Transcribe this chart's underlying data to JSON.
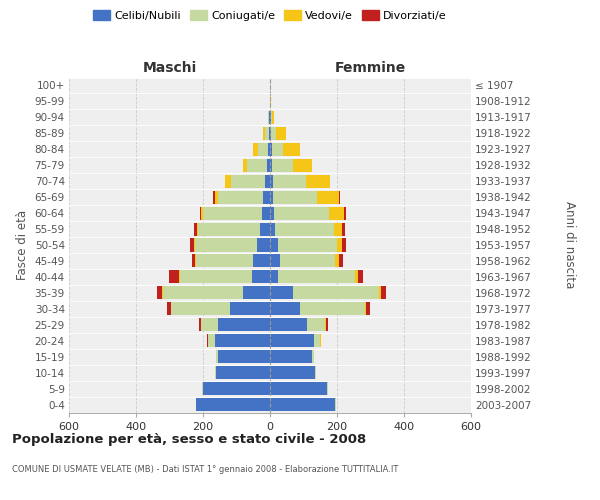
{
  "age_groups": [
    "100+",
    "95-99",
    "90-94",
    "85-89",
    "80-84",
    "75-79",
    "70-74",
    "65-69",
    "60-64",
    "55-59",
    "50-54",
    "45-49",
    "40-44",
    "35-39",
    "30-34",
    "25-29",
    "20-24",
    "15-19",
    "10-14",
    "5-9",
    "0-4"
  ],
  "birth_years": [
    "≤ 1907",
    "1908-1912",
    "1913-1917",
    "1918-1922",
    "1923-1927",
    "1928-1932",
    "1933-1937",
    "1938-1942",
    "1943-1947",
    "1948-1952",
    "1953-1957",
    "1958-1962",
    "1963-1967",
    "1968-1972",
    "1973-1977",
    "1978-1982",
    "1983-1987",
    "1988-1992",
    "1993-1997",
    "1998-2002",
    "2003-2007"
  ],
  "male_celibe": [
    0,
    0,
    2,
    4,
    5,
    8,
    15,
    20,
    25,
    30,
    40,
    50,
    55,
    80,
    120,
    155,
    165,
    155,
    160,
    200,
    220
  ],
  "male_coniugato": [
    0,
    0,
    3,
    10,
    30,
    60,
    100,
    135,
    175,
    185,
    185,
    170,
    215,
    240,
    175,
    50,
    20,
    5,
    3,
    2,
    1
  ],
  "male_vedovo": [
    0,
    0,
    1,
    8,
    15,
    12,
    20,
    10,
    5,
    3,
    3,
    3,
    2,
    1,
    1,
    1,
    1,
    0,
    0,
    0,
    0
  ],
  "male_divorziato": [
    0,
    0,
    0,
    0,
    0,
    0,
    0,
    5,
    5,
    10,
    10,
    10,
    30,
    15,
    10,
    5,
    2,
    1,
    0,
    0,
    0
  ],
  "female_celibe": [
    0,
    0,
    2,
    3,
    5,
    5,
    8,
    10,
    12,
    15,
    25,
    30,
    25,
    70,
    90,
    110,
    130,
    125,
    135,
    170,
    195
  ],
  "female_coniugata": [
    0,
    0,
    3,
    15,
    35,
    65,
    100,
    130,
    165,
    175,
    175,
    165,
    230,
    255,
    195,
    55,
    20,
    5,
    3,
    2,
    1
  ],
  "female_vedova": [
    1,
    3,
    8,
    30,
    50,
    55,
    70,
    65,
    45,
    25,
    15,
    10,
    8,
    5,
    3,
    2,
    1,
    0,
    0,
    0,
    0
  ],
  "female_divorziata": [
    0,
    0,
    0,
    0,
    0,
    0,
    0,
    3,
    5,
    10,
    12,
    12,
    15,
    15,
    10,
    5,
    2,
    1,
    0,
    0,
    0
  ],
  "color_celibe": "#4472c4",
  "color_coniugato": "#c5d9a0",
  "color_vedovo": "#f5c518",
  "color_divorziato": "#c0211f",
  "title": "Popolazione per età, sesso e stato civile - 2008",
  "subtitle": "COMUNE DI USMATE VELATE (MB) - Dati ISTAT 1° gennaio 2008 - Elaborazione TUTTITALIA.IT",
  "ylabel_left": "Fasce di età",
  "ylabel_right": "Anni di nascita",
  "label_maschi": "Maschi",
  "label_femmine": "Femmine",
  "xlim": 600,
  "bg_color": "#efefef",
  "grid_color": "#cccccc"
}
